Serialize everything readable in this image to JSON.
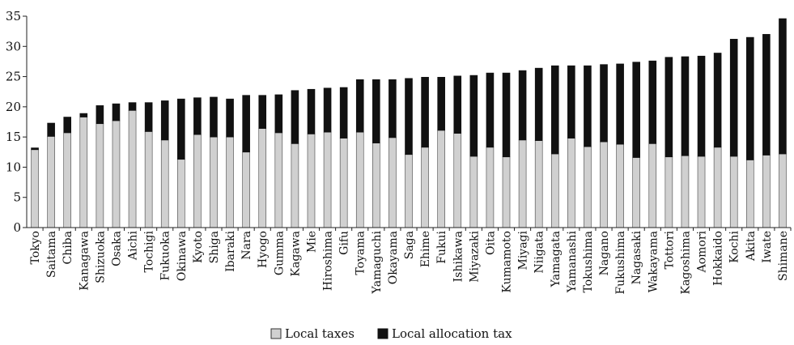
{
  "chart_data": {
    "type": "bar",
    "stacked": true,
    "title": "",
    "xlabel": "",
    "ylabel": "",
    "ylim": [
      0,
      35
    ],
    "yticks": [
      0,
      5,
      10,
      15,
      20,
      25,
      30,
      35
    ],
    "grid": false,
    "legend_position": "bottom-center",
    "categories": [
      "Tokyo",
      "Saitama",
      "Chiba",
      "Kanagawa",
      "Shizuoka",
      "Osaka",
      "Aichi",
      "Tochigi",
      "Fukuoka",
      "Okinawa",
      "Kyoto",
      "Shiga",
      "Ibaraki",
      "Nara",
      "Hyogo",
      "Gumma",
      "Kagawa",
      "Mie",
      "Hiroshima",
      "Gifu",
      "Toyama",
      "Yamaguchi",
      "Okayama",
      "Saga",
      "Ehime",
      "Fukui",
      "Ishikawa",
      "Miyazaki",
      "Oita",
      "Kumamoto",
      "Miyagi",
      "Niigata",
      "Yamagata",
      "Yamanashi",
      "Tokushima",
      "Nagano",
      "Fukushima",
      "Nagasaki",
      "Wakayama",
      "Tottori",
      "Kagoshima",
      "Aomori",
      "Hokkaido",
      "Kochi",
      "Akita",
      "Iwate",
      "Shimane"
    ],
    "series": [
      {
        "name": "Local taxes",
        "color": "#d0d0d0",
        "values": [
          12.9,
          15.1,
          15.7,
          18.3,
          17.2,
          17.7,
          19.4,
          15.9,
          14.5,
          11.3,
          15.4,
          15.0,
          15.0,
          12.5,
          16.4,
          15.7,
          13.9,
          15.5,
          15.8,
          14.8,
          15.8,
          14.0,
          14.9,
          12.1,
          13.3,
          16.1,
          15.6,
          11.8,
          13.3,
          11.7,
          14.5,
          14.4,
          12.2,
          14.8,
          13.4,
          14.2,
          13.8,
          11.6,
          13.9,
          11.7,
          11.9,
          11.8,
          13.3,
          11.8,
          11.2,
          12.0,
          12.2
        ]
      },
      {
        "name": "Local allocation tax",
        "color": "#111111",
        "values": [
          0.3,
          2.2,
          2.6,
          0.6,
          3.0,
          2.8,
          1.3,
          4.8,
          6.5,
          10.0,
          6.1,
          6.6,
          6.3,
          9.4,
          5.5,
          6.3,
          8.8,
          7.4,
          7.3,
          8.4,
          8.7,
          10.5,
          9.6,
          12.6,
          11.6,
          8.8,
          9.5,
          13.4,
          12.3,
          13.9,
          11.5,
          12.0,
          14.6,
          12.0,
          13.4,
          12.8,
          13.3,
          15.8,
          13.7,
          16.5,
          16.4,
          16.6,
          15.6,
          19.4,
          20.3,
          20.0,
          22.4
        ]
      }
    ]
  }
}
